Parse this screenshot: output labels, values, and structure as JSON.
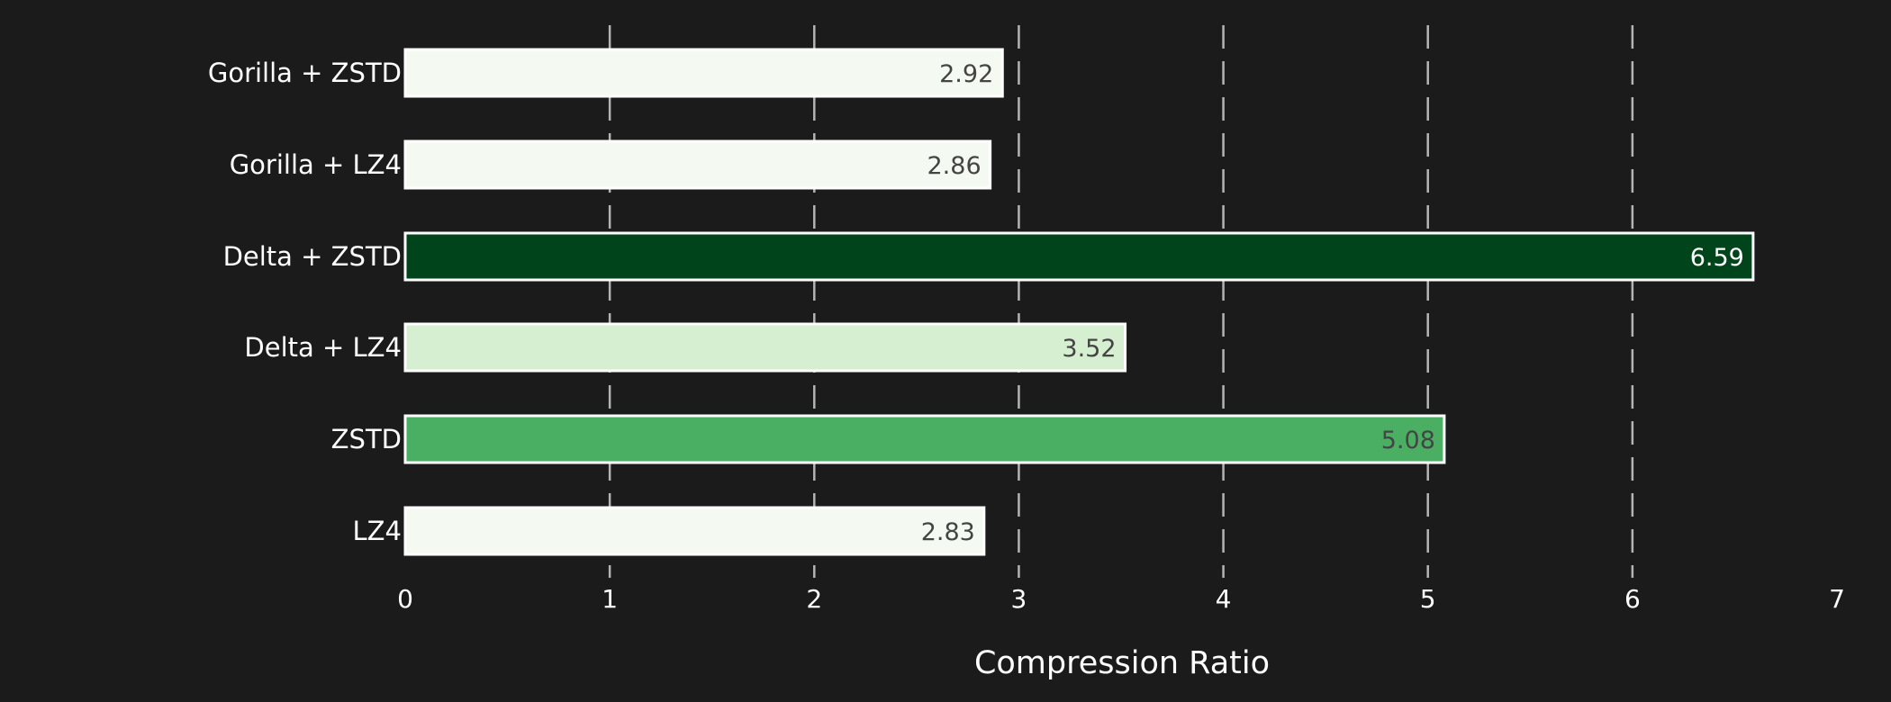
{
  "chart_data": {
    "type": "bar",
    "orientation": "horizontal",
    "categories": [
      "Gorilla + ZSTD",
      "Gorilla + LZ4",
      "Delta + ZSTD",
      "Delta + LZ4",
      "ZSTD",
      "LZ4"
    ],
    "values": [
      2.92,
      2.86,
      6.59,
      3.52,
      5.08,
      2.83
    ],
    "value_labels": [
      "2.92",
      "2.86",
      "6.59",
      "3.52",
      "5.08",
      "2.83"
    ],
    "bar_colors": [
      "#f4faf1",
      "#f4faf1",
      "#00441b",
      "#d5efd0",
      "#4aaf62",
      "#f4faf1"
    ],
    "label_colors": [
      "#444444",
      "#444444",
      "#ffffff",
      "#444444",
      "#444444",
      "#444444"
    ],
    "title": "",
    "xlabel": "Compression Ratio",
    "ylabel": "",
    "xlim": [
      0,
      7
    ],
    "xticks": [
      "0",
      "1",
      "2",
      "3",
      "4",
      "5",
      "6",
      "7"
    ],
    "grid": "x-dashed",
    "legend": "none",
    "colors": {
      "background": "#1b1b1b",
      "text": "#ffffff",
      "grid": "#b4b4b4",
      "bar_edge": "#ffffff"
    }
  }
}
